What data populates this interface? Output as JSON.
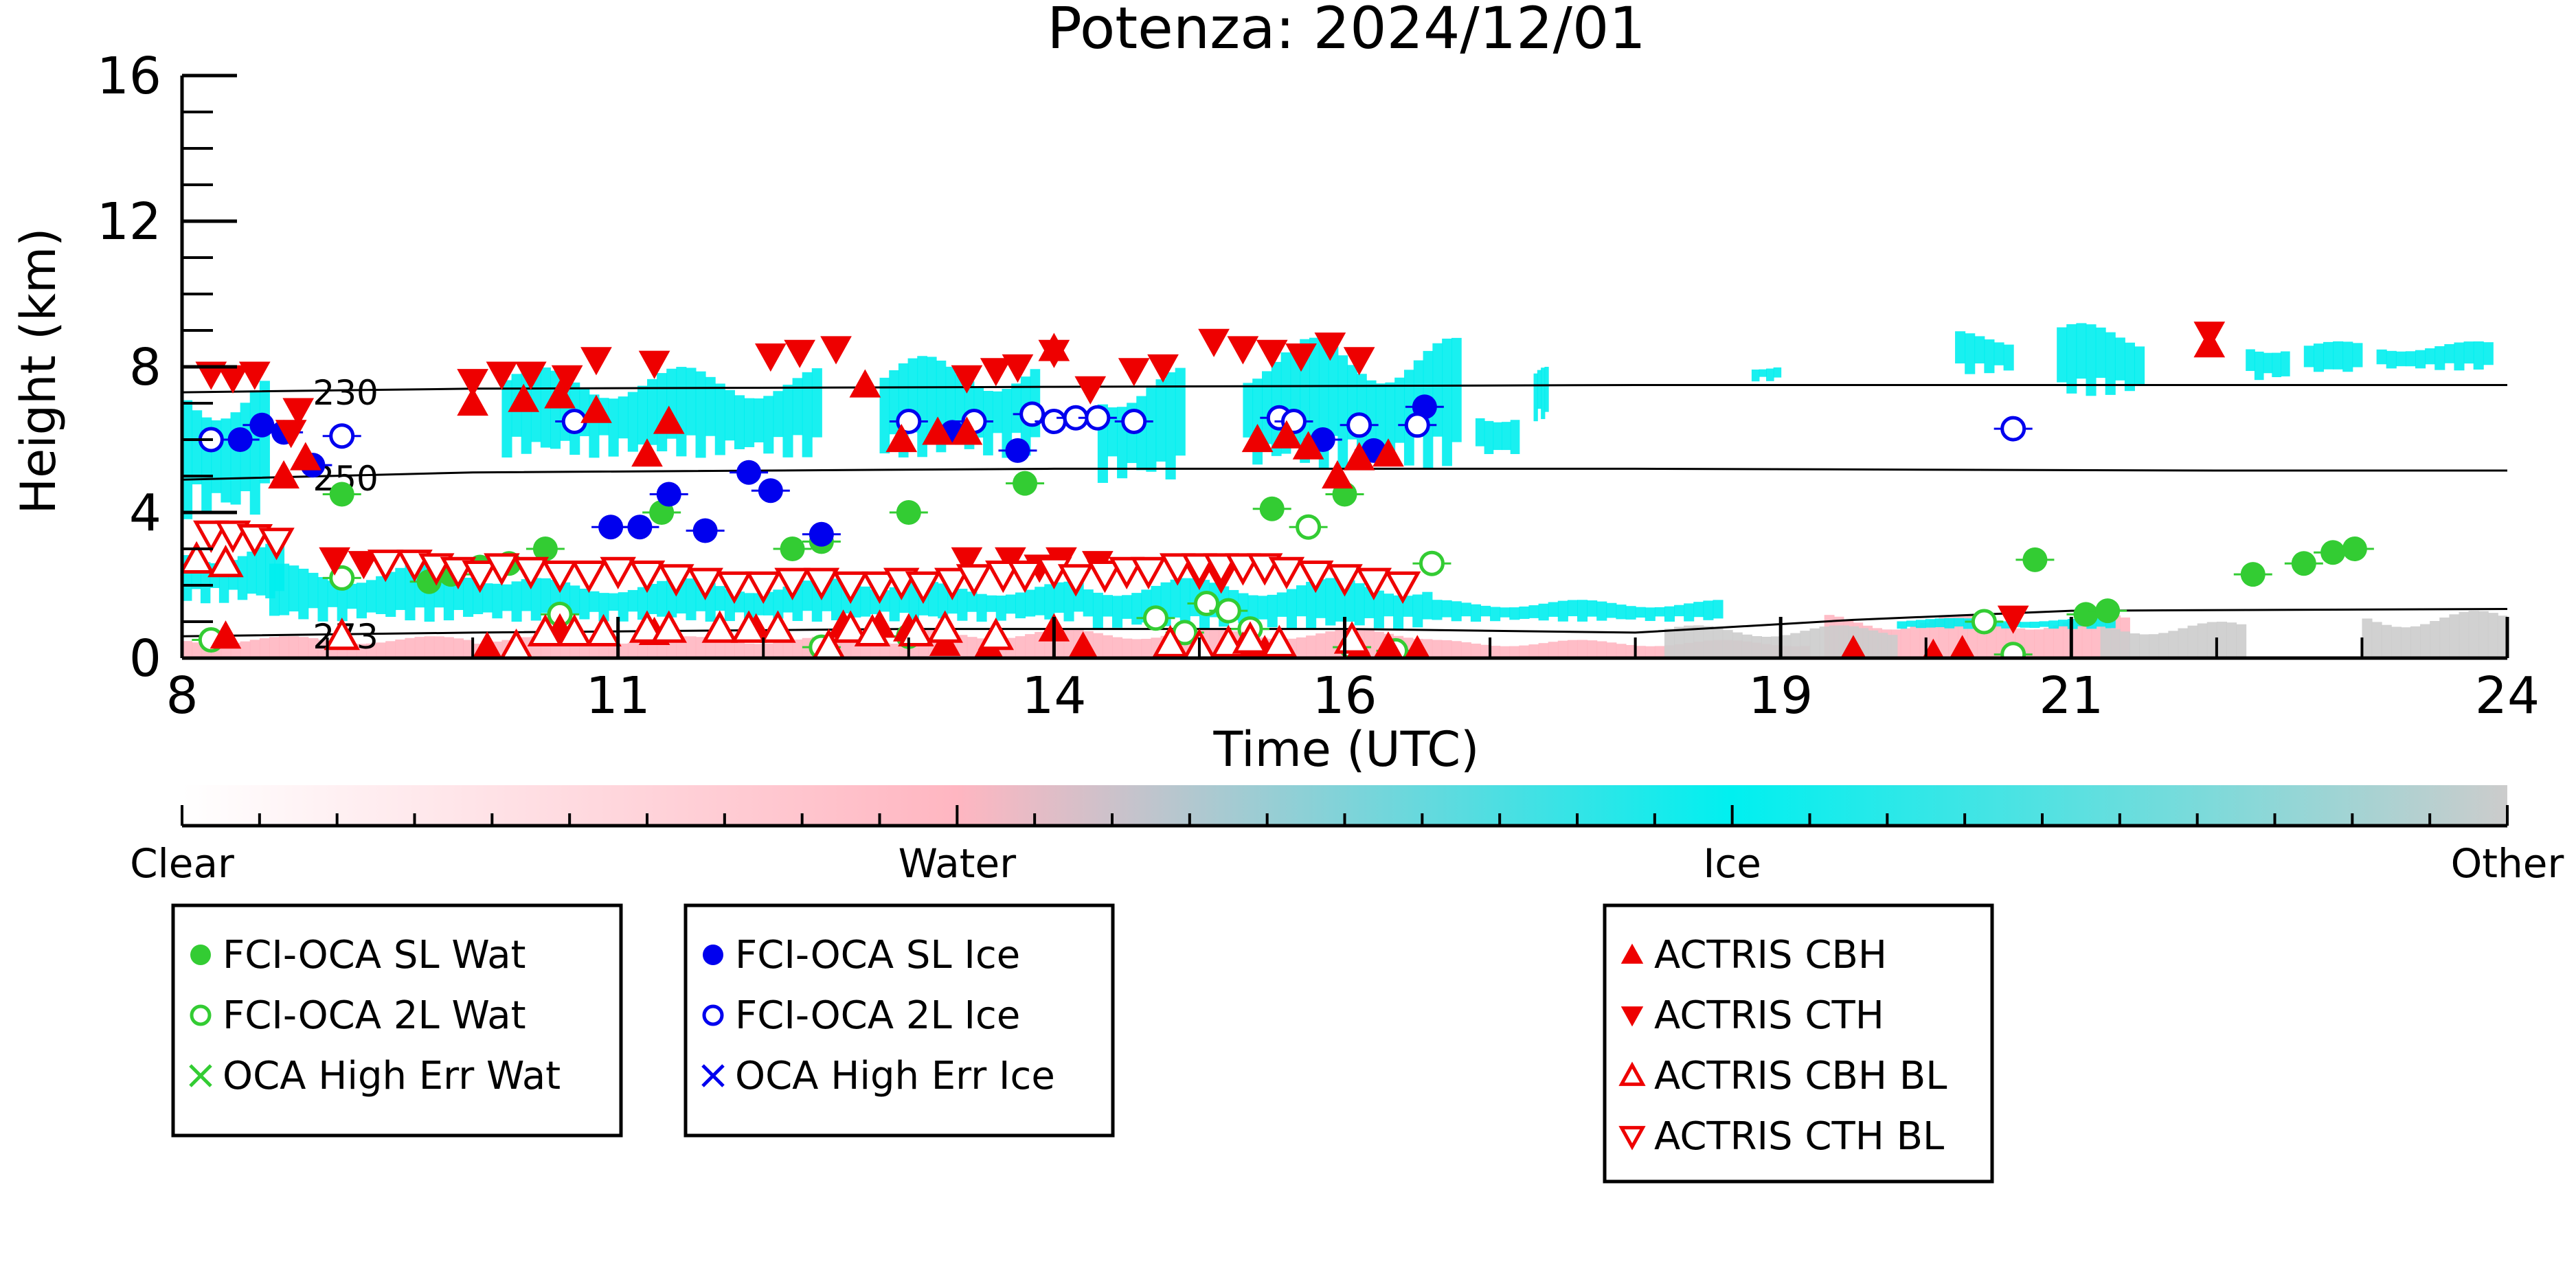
{
  "chart_data": {
    "type": "scatter",
    "title": "Potenza: 2024/12/01",
    "xlabel": "Time (UTC)",
    "ylabel": "Height (km)",
    "xlim": [
      8,
      24
    ],
    "ylim": [
      0,
      16
    ],
    "xticks": [
      8,
      11,
      14,
      16,
      19,
      21,
      24
    ],
    "xtick_labels": [
      "8",
      "11",
      "14",
      "16",
      "19",
      "21",
      "24"
    ],
    "yticks": [
      0,
      4,
      8,
      12,
      16
    ],
    "ytick_labels": [
      "0",
      "4",
      "8",
      "12",
      "16"
    ],
    "grid": false,
    "colors": {
      "sl_wat": "#33cc33",
      "sl_ice": "#0000ee",
      "actris": "#ee0000",
      "ice": "#00eeee",
      "water": "#ffb6c1",
      "other": "#cccccc"
    },
    "colorbar": {
      "labels": [
        "Clear",
        "Water",
        "Ice",
        "Other"
      ],
      "stops": [
        "#ffffff",
        "#ffb6c1",
        "#00f0f0",
        "#cccccc"
      ]
    },
    "isotherms": [
      {
        "label": "230",
        "x": [
          8,
          10,
          14,
          18,
          22,
          24
        ],
        "y": [
          7.3,
          7.4,
          7.45,
          7.5,
          7.5,
          7.5
        ]
      },
      {
        "label": "250",
        "x": [
          8,
          10,
          14,
          18,
          22,
          24
        ],
        "y": [
          4.9,
          5.1,
          5.2,
          5.2,
          5.15,
          5.15
        ]
      },
      {
        "label": "273",
        "x": [
          8,
          10,
          13,
          16,
          18,
          19.5,
          21,
          24
        ],
        "y": [
          0.6,
          0.7,
          0.8,
          0.8,
          0.7,
          1.05,
          1.3,
          1.35
        ]
      }
    ],
    "cloud_mask": {
      "ice": [
        [
          8,
          8.6,
          3.8,
          8.0
        ],
        [
          10.2,
          12.4,
          5.5,
          8.0
        ],
        [
          12.8,
          13.9,
          5.5,
          8.3
        ],
        [
          14.3,
          14.9,
          4.8,
          8.0
        ],
        [
          15.3,
          16.8,
          5.2,
          8.8
        ],
        [
          16.9,
          17.2,
          5.5,
          7.0
        ],
        [
          17.3,
          17.4,
          6.5,
          8.0
        ],
        [
          18.8,
          19.0,
          7.6,
          8.1
        ],
        [
          20.2,
          20.6,
          7.8,
          9.0
        ],
        [
          20.9,
          21.5,
          7.2,
          9.2
        ],
        [
          22.2,
          22.5,
          7.6,
          8.8
        ],
        [
          22.6,
          23.0,
          7.8,
          8.7
        ],
        [
          23.1,
          23.9,
          7.9,
          8.7
        ]
      ],
      "ice_low": [
        [
          8,
          8.7,
          1.5,
          3.2
        ],
        [
          8.6,
          10.2,
          1.0,
          2.6
        ],
        [
          10.2,
          12.8,
          1.0,
          2.2
        ],
        [
          12.8,
          14.2,
          1.0,
          2.1
        ],
        [
          14.2,
          16.6,
          0.8,
          2.2
        ],
        [
          16.6,
          18.6,
          1.0,
          1.6
        ],
        [
          19.8,
          21.3,
          0.8,
          1.1
        ]
      ],
      "water": [
        [
          8,
          10.0,
          0.0,
          0.6
        ],
        [
          10.0,
          13.0,
          0.0,
          0.6
        ],
        [
          13.0,
          16.6,
          0.0,
          0.8
        ],
        [
          16.6,
          19.2,
          0.0,
          0.5
        ],
        [
          19.3,
          21.4,
          0.0,
          1.2
        ]
      ],
      "other": [
        [
          18.2,
          19.8,
          0.0,
          0.9
        ],
        [
          21.2,
          22.2,
          0.0,
          1.0
        ],
        [
          23.0,
          24.0,
          0.0,
          1.3
        ]
      ]
    },
    "series": [
      {
        "name": "FCI-OCA SL Wat",
        "marker": "circle-filled",
        "color": "#33cc33",
        "points": [
          [
            9.1,
            4.5
          ],
          [
            9.7,
            2.1
          ],
          [
            9.85,
            2.3
          ],
          [
            10.05,
            2.5
          ],
          [
            10.25,
            2.6
          ],
          [
            10.5,
            3.0
          ],
          [
            11.3,
            4.0
          ],
          [
            12.2,
            3.0
          ],
          [
            12.4,
            3.2
          ],
          [
            13.0,
            4.0
          ],
          [
            13.8,
            4.8
          ],
          [
            15.5,
            4.1
          ],
          [
            16.0,
            4.5
          ],
          [
            20.75,
            2.7
          ],
          [
            21.1,
            1.2
          ],
          [
            21.25,
            1.3
          ],
          [
            22.25,
            2.3
          ],
          [
            22.6,
            2.6
          ],
          [
            22.8,
            2.9
          ],
          [
            22.95,
            3.0
          ]
        ]
      },
      {
        "name": "FCI-OCA 2L Wat",
        "marker": "circle-open",
        "color": "#33cc33",
        "points": [
          [
            8.2,
            0.5
          ],
          [
            9.1,
            2.2
          ],
          [
            10.6,
            1.2
          ],
          [
            12.4,
            0.3
          ],
          [
            13.0,
            0.6
          ],
          [
            14.7,
            1.1
          ],
          [
            14.9,
            0.7
          ],
          [
            15.05,
            1.5
          ],
          [
            15.2,
            1.3
          ],
          [
            15.35,
            0.8
          ],
          [
            15.75,
            3.6
          ],
          [
            16.05,
            0.3
          ],
          [
            16.35,
            0.2
          ],
          [
            16.6,
            2.6
          ],
          [
            20.4,
            1.0
          ],
          [
            20.6,
            0.1
          ]
        ]
      },
      {
        "name": "OCA High Err Wat",
        "marker": "x",
        "color": "#33cc33",
        "points": []
      },
      {
        "name": "FCI-OCA SL Ice",
        "marker": "circle-filled",
        "color": "#0000ee",
        "points": [
          [
            8.4,
            6.0
          ],
          [
            8.55,
            6.4
          ],
          [
            8.7,
            6.2
          ],
          [
            8.9,
            5.3
          ],
          [
            10.95,
            3.6
          ],
          [
            11.15,
            3.6
          ],
          [
            11.35,
            4.5
          ],
          [
            11.6,
            3.5
          ],
          [
            11.9,
            5.1
          ],
          [
            12.05,
            4.6
          ],
          [
            12.4,
            3.4
          ],
          [
            13.3,
            6.2
          ],
          [
            13.75,
            5.7
          ],
          [
            15.85,
            6.0
          ],
          [
            16.2,
            5.7
          ],
          [
            16.55,
            6.9
          ]
        ]
      },
      {
        "name": "FCI-OCA 2L Ice",
        "marker": "circle-open",
        "color": "#0000ee",
        "points": [
          [
            8.2,
            6.0
          ],
          [
            9.1,
            6.1
          ],
          [
            10.7,
            6.5
          ],
          [
            13.0,
            6.5
          ],
          [
            13.45,
            6.5
          ],
          [
            13.85,
            6.7
          ],
          [
            14.0,
            6.5
          ],
          [
            14.15,
            6.6
          ],
          [
            14.3,
            6.6
          ],
          [
            14.55,
            6.5
          ],
          [
            15.55,
            6.6
          ],
          [
            15.65,
            6.5
          ],
          [
            16.1,
            6.4
          ],
          [
            16.5,
            6.4
          ],
          [
            20.6,
            6.3
          ]
        ]
      },
      {
        "name": "OCA High Err Ice",
        "marker": "x",
        "color": "#0000ee",
        "points": []
      },
      {
        "name": "ACTRIS CBH",
        "marker": "triangle-up-filled",
        "color": "#ee0000",
        "points": [
          [
            8.7,
            5.0
          ],
          [
            8.85,
            5.5
          ],
          [
            10.0,
            7.0
          ],
          [
            10.35,
            7.1
          ],
          [
            10.6,
            7.2
          ],
          [
            10.85,
            6.8
          ],
          [
            11.2,
            5.6
          ],
          [
            11.35,
            6.5
          ],
          [
            12.7,
            7.5
          ],
          [
            12.95,
            6.0
          ],
          [
            13.2,
            6.2
          ],
          [
            13.4,
            6.2
          ],
          [
            14.0,
            8.5
          ],
          [
            15.4,
            6.0
          ],
          [
            15.6,
            6.1
          ],
          [
            15.75,
            5.8
          ],
          [
            15.95,
            5.0
          ],
          [
            16.1,
            5.5
          ],
          [
            16.3,
            5.6
          ],
          [
            21.95,
            8.6
          ],
          [
            8.3,
            0.6
          ],
          [
            10.1,
            0.3
          ],
          [
            10.6,
            0.8
          ],
          [
            11.25,
            0.7
          ],
          [
            11.95,
            0.8
          ],
          [
            12.55,
            0.9
          ],
          [
            12.8,
            0.9
          ],
          [
            13.0,
            0.8
          ],
          [
            13.25,
            0.4
          ],
          [
            13.55,
            0.3
          ],
          [
            14.0,
            0.8
          ],
          [
            14.2,
            0.3
          ],
          [
            15.3,
            0.3
          ],
          [
            15.45,
            0.2
          ],
          [
            16.1,
            0.2
          ],
          [
            16.3,
            0.3
          ],
          [
            16.5,
            0.2
          ],
          [
            19.5,
            0.2
          ],
          [
            20.05,
            0.1
          ],
          [
            20.25,
            0.2
          ]
        ]
      },
      {
        "name": "ACTRIS CTH",
        "marker": "triangle-down-filled",
        "color": "#ee0000",
        "points": [
          [
            8.2,
            7.8
          ],
          [
            8.35,
            7.7
          ],
          [
            8.5,
            7.8
          ],
          [
            8.8,
            6.8
          ],
          [
            10.0,
            7.6
          ],
          [
            10.2,
            7.8
          ],
          [
            10.4,
            7.8
          ],
          [
            10.65,
            7.7
          ],
          [
            10.85,
            8.2
          ],
          [
            11.25,
            8.1
          ],
          [
            12.05,
            8.3
          ],
          [
            12.25,
            8.4
          ],
          [
            12.5,
            8.5
          ],
          [
            13.4,
            7.7
          ],
          [
            13.6,
            7.9
          ],
          [
            13.75,
            8.0
          ],
          [
            14.0,
            8.4
          ],
          [
            14.25,
            7.4
          ],
          [
            14.55,
            7.9
          ],
          [
            14.75,
            8.0
          ],
          [
            15.1,
            8.7
          ],
          [
            15.3,
            8.5
          ],
          [
            15.5,
            8.4
          ],
          [
            15.7,
            8.3
          ],
          [
            15.9,
            8.6
          ],
          [
            16.1,
            8.2
          ],
          [
            21.95,
            8.9
          ],
          [
            8.75,
            6.2
          ],
          [
            9.05,
            2.7
          ],
          [
            9.25,
            2.6
          ],
          [
            13.4,
            2.7
          ],
          [
            14.05,
            2.7
          ],
          [
            14.3,
            2.6
          ],
          [
            20.6,
            1.1
          ],
          [
            15.15,
            2.2
          ],
          [
            15.0,
            2.3
          ],
          [
            14.5,
            2.4
          ],
          [
            13.7,
            2.7
          ],
          [
            13.9,
            2.5
          ]
        ]
      },
      {
        "name": "ACTRIS CBH BL",
        "marker": "triangle-up-open",
        "color": "#ee0000",
        "points": [
          [
            8.1,
            2.7
          ],
          [
            8.3,
            2.6
          ],
          [
            9.1,
            0.6
          ],
          [
            10.3,
            0.3
          ],
          [
            10.5,
            0.7
          ],
          [
            10.7,
            0.7
          ],
          [
            10.9,
            0.7
          ],
          [
            11.2,
            0.8
          ],
          [
            11.35,
            0.8
          ],
          [
            11.7,
            0.8
          ],
          [
            11.9,
            0.8
          ],
          [
            12.1,
            0.8
          ],
          [
            12.45,
            0.3
          ],
          [
            12.6,
            0.8
          ],
          [
            12.75,
            0.7
          ],
          [
            13.05,
            0.7
          ],
          [
            13.25,
            0.8
          ],
          [
            13.6,
            0.6
          ],
          [
            14.8,
            0.4
          ],
          [
            15.0,
            0.3
          ],
          [
            15.2,
            0.4
          ],
          [
            15.35,
            0.5
          ],
          [
            15.55,
            0.4
          ],
          [
            16.05,
            0.5
          ]
        ]
      },
      {
        "name": "ACTRIS CTH BL",
        "marker": "triangle-down-open",
        "color": "#ee0000",
        "points": [
          [
            8.2,
            3.4
          ],
          [
            8.35,
            3.4
          ],
          [
            8.5,
            3.3
          ],
          [
            8.65,
            3.2
          ],
          [
            9.4,
            2.6
          ],
          [
            9.6,
            2.6
          ],
          [
            9.75,
            2.5
          ],
          [
            9.9,
            2.4
          ],
          [
            10.05,
            2.3
          ],
          [
            10.2,
            2.5
          ],
          [
            10.4,
            2.4
          ],
          [
            10.6,
            2.3
          ],
          [
            10.8,
            2.3
          ],
          [
            11.0,
            2.4
          ],
          [
            11.2,
            2.3
          ],
          [
            11.4,
            2.2
          ],
          [
            11.6,
            2.1
          ],
          [
            11.8,
            2.0
          ],
          [
            12.0,
            2.0
          ],
          [
            12.2,
            2.1
          ],
          [
            12.4,
            2.1
          ],
          [
            12.6,
            2.0
          ],
          [
            12.8,
            2.0
          ],
          [
            12.95,
            2.1
          ],
          [
            13.1,
            2.0
          ],
          [
            13.3,
            2.1
          ],
          [
            13.45,
            2.2
          ],
          [
            13.65,
            2.3
          ],
          [
            13.8,
            2.3
          ],
          [
            14.0,
            2.4
          ],
          [
            14.15,
            2.2
          ],
          [
            14.35,
            2.3
          ],
          [
            14.5,
            2.4
          ],
          [
            14.65,
            2.4
          ],
          [
            14.85,
            2.5
          ],
          [
            15.0,
            2.5
          ],
          [
            15.15,
            2.5
          ],
          [
            15.3,
            2.5
          ],
          [
            15.45,
            2.5
          ],
          [
            15.6,
            2.4
          ],
          [
            15.8,
            2.3
          ],
          [
            16.0,
            2.2
          ],
          [
            16.2,
            2.1
          ],
          [
            16.4,
            2.0
          ]
        ]
      }
    ]
  },
  "legends": [
    {
      "items": [
        "FCI-OCA SL Wat",
        "FCI-OCA 2L Wat",
        "OCA High Err Wat"
      ]
    },
    {
      "items": [
        "FCI-OCA SL Ice",
        "FCI-OCA 2L Ice",
        "OCA High Err Ice"
      ]
    },
    {
      "items": [
        "ACTRIS CBH",
        "ACTRIS CTH",
        "ACTRIS CBH BL",
        "ACTRIS CTH BL"
      ]
    }
  ]
}
